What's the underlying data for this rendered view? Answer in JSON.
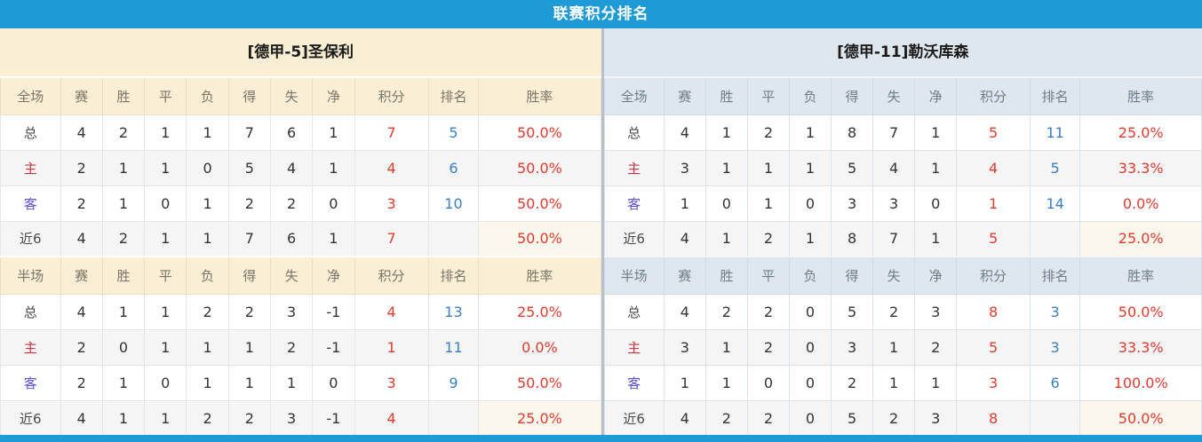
{
  "title": "联赛积分排名",
  "colors": {
    "accent_blue": "#1e9ad6",
    "left_header_cream": "#faefd5",
    "right_header_bluegray": "#dfe7ee",
    "points_red": "#e23b2e",
    "rank_blue": "#3a7fc1",
    "home_label_red": "#cc3340",
    "away_label_blue": "#5b51d8",
    "stripe_gray": "#f5f5f5"
  },
  "tables": [
    {
      "team_label": "[德甲-5]圣保利",
      "sections": [
        {
          "scope_label": "全场",
          "columns": [
            "赛",
            "胜",
            "平",
            "负",
            "得",
            "失",
            "净",
            "积分",
            "排名",
            "胜率"
          ],
          "rows": [
            {
              "label": "总",
              "type": "total",
              "values": [
                "4",
                "2",
                "1",
                "1",
                "7",
                "6",
                "1",
                "7",
                "5",
                "50.0%"
              ]
            },
            {
              "label": "主",
              "type": "home",
              "values": [
                "2",
                "1",
                "1",
                "0",
                "5",
                "4",
                "1",
                "4",
                "6",
                "50.0%"
              ]
            },
            {
              "label": "客",
              "type": "away",
              "values": [
                "2",
                "1",
                "0",
                "1",
                "2",
                "2",
                "0",
                "3",
                "10",
                "50.0%"
              ]
            },
            {
              "label": "近6",
              "type": "recent",
              "values": [
                "4",
                "2",
                "1",
                "1",
                "7",
                "6",
                "1",
                "7",
                "",
                "50.0%"
              ]
            }
          ]
        },
        {
          "scope_label": "半场",
          "columns": [
            "赛",
            "胜",
            "平",
            "负",
            "得",
            "失",
            "净",
            "积分",
            "排名",
            "胜率"
          ],
          "rows": [
            {
              "label": "总",
              "type": "total",
              "values": [
                "4",
                "1",
                "1",
                "2",
                "2",
                "3",
                "-1",
                "4",
                "13",
                "25.0%"
              ]
            },
            {
              "label": "主",
              "type": "home",
              "values": [
                "2",
                "0",
                "1",
                "1",
                "1",
                "2",
                "-1",
                "1",
                "11",
                "0.0%"
              ]
            },
            {
              "label": "客",
              "type": "away",
              "values": [
                "2",
                "1",
                "0",
                "1",
                "1",
                "1",
                "0",
                "3",
                "9",
                "50.0%"
              ]
            },
            {
              "label": "近6",
              "type": "recent",
              "values": [
                "4",
                "1",
                "1",
                "2",
                "2",
                "3",
                "-1",
                "4",
                "",
                "25.0%"
              ]
            }
          ]
        }
      ]
    },
    {
      "team_label": "[德甲-11]勒沃库森",
      "sections": [
        {
          "scope_label": "全场",
          "columns": [
            "赛",
            "胜",
            "平",
            "负",
            "得",
            "失",
            "净",
            "积分",
            "排名",
            "胜率"
          ],
          "rows": [
            {
              "label": "总",
              "type": "total",
              "values": [
                "4",
                "1",
                "2",
                "1",
                "8",
                "7",
                "1",
                "5",
                "11",
                "25.0%"
              ]
            },
            {
              "label": "主",
              "type": "home",
              "values": [
                "3",
                "1",
                "1",
                "1",
                "5",
                "4",
                "1",
                "4",
                "5",
                "33.3%"
              ]
            },
            {
              "label": "客",
              "type": "away",
              "values": [
                "1",
                "0",
                "1",
                "0",
                "3",
                "3",
                "0",
                "1",
                "14",
                "0.0%"
              ]
            },
            {
              "label": "近6",
              "type": "recent",
              "values": [
                "4",
                "1",
                "2",
                "1",
                "8",
                "7",
                "1",
                "5",
                "",
                "25.0%"
              ]
            }
          ]
        },
        {
          "scope_label": "半场",
          "columns": [
            "赛",
            "胜",
            "平",
            "负",
            "得",
            "失",
            "净",
            "积分",
            "排名",
            "胜率"
          ],
          "rows": [
            {
              "label": "总",
              "type": "total",
              "values": [
                "4",
                "2",
                "2",
                "0",
                "5",
                "2",
                "3",
                "8",
                "3",
                "50.0%"
              ]
            },
            {
              "label": "主",
              "type": "home",
              "values": [
                "3",
                "1",
                "2",
                "0",
                "3",
                "1",
                "2",
                "5",
                "3",
                "33.3%"
              ]
            },
            {
              "label": "客",
              "type": "away",
              "values": [
                "1",
                "1",
                "0",
                "0",
                "2",
                "1",
                "1",
                "3",
                "6",
                "100.0%"
              ]
            },
            {
              "label": "近6",
              "type": "recent",
              "values": [
                "4",
                "2",
                "2",
                "0",
                "5",
                "2",
                "3",
                "8",
                "",
                "50.0%"
              ]
            }
          ]
        }
      ]
    }
  ]
}
